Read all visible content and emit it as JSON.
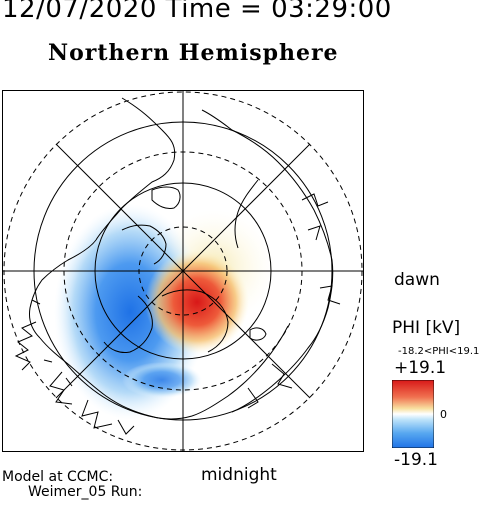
{
  "header": {
    "datetime": "12/07/2020 Time = 03:29:00",
    "title": "Northern Hemisphere"
  },
  "map": {
    "projection": "polar stereographic",
    "dawn_label": "dawn",
    "midnight_label": "midnight",
    "colors": {
      "positive": "#e02020",
      "negative": "#2a7fe0",
      "neutral": "#ffffff",
      "coast": "#000000"
    }
  },
  "colorbar": {
    "title": "PHI [kV]",
    "range_text": "-18.2<PHI<19.1",
    "max_label": "+19.1",
    "zero_label": "0",
    "min_label": "-19.1",
    "min": -19.1,
    "max": 19.1
  },
  "footer": {
    "model_line1": "Model at CCMC:",
    "model_line2": "Weimer_05 Run:"
  }
}
